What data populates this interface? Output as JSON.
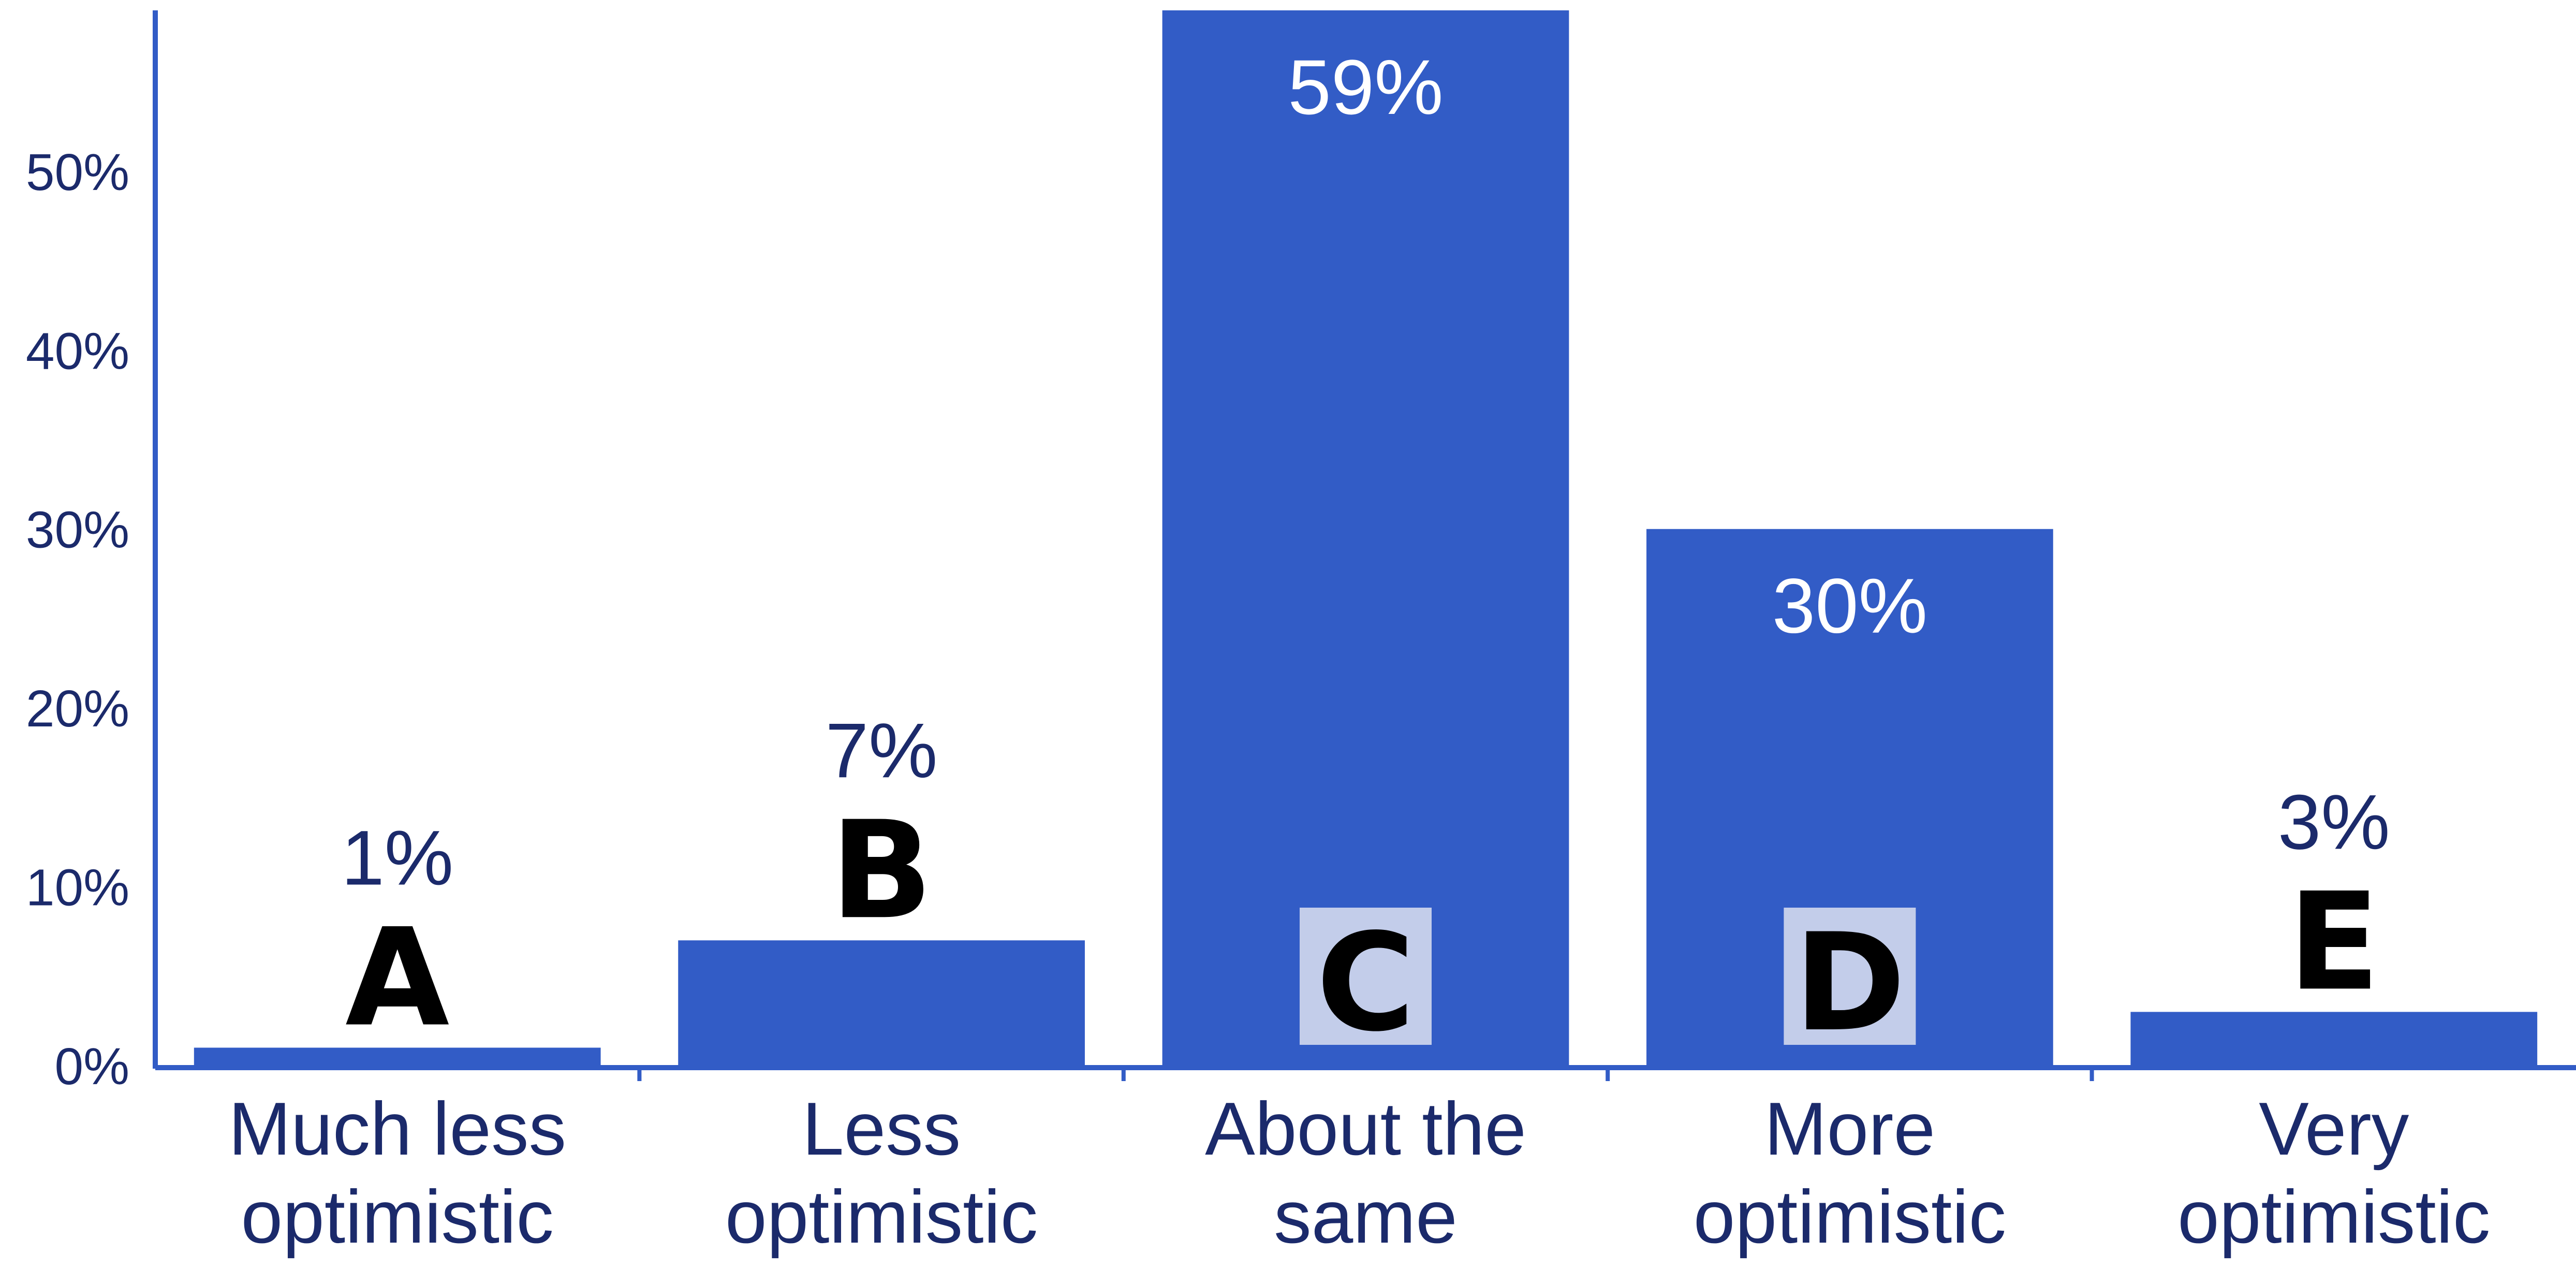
{
  "chart_data": {
    "type": "bar",
    "title": "",
    "xlabel": "",
    "ylabel": "",
    "categories": [
      "Much less optimistic",
      "Less optimistic",
      "About the same",
      "More optimistic",
      "Very optimistic"
    ],
    "category_lines": [
      [
        "Much less",
        "optimistic"
      ],
      [
        "Less",
        "optimistic"
      ],
      [
        "About the",
        "same"
      ],
      [
        "More",
        "optimistic"
      ],
      [
        "Very",
        "optimistic"
      ]
    ],
    "values": [
      1,
      7,
      59,
      30,
      3
    ],
    "value_labels": [
      "1%",
      "7%",
      "59%",
      "30%",
      "3%"
    ],
    "letters": [
      "A",
      "B",
      "C",
      "D",
      "E"
    ],
    "ylim": [
      0,
      59
    ],
    "yticks": [
      0,
      10,
      20,
      30,
      40,
      50
    ],
    "ytick_labels": [
      "0%",
      "10%",
      "20%",
      "30%",
      "40%",
      "50%"
    ],
    "grid": false,
    "legend": "none",
    "colors": {
      "bar": "#325cc6",
      "axis": "#325cc6",
      "text": "#1b2a6b",
      "label_inside": "#ffffff",
      "letter_box": "#c3cdea",
      "letter": "#000000"
    }
  }
}
